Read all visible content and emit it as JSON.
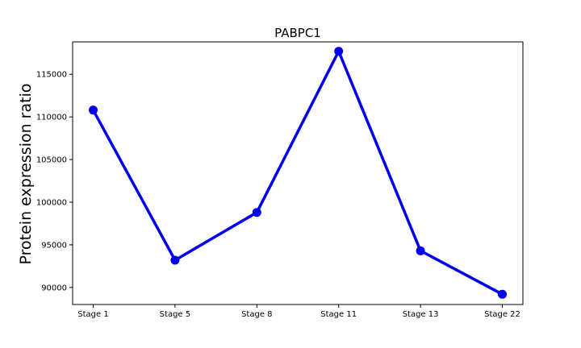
{
  "chart_data": {
    "type": "line",
    "title": "PABPC1",
    "xlabel": "",
    "ylabel": "Protein expression ratio",
    "categories": [
      "Stage 1",
      "Stage 5",
      "Stage 8",
      "Stage 11",
      "Stage 13",
      "Stage 22"
    ],
    "series": [
      {
        "values": [
          110800,
          93200,
          98800,
          117700,
          94300,
          89200
        ]
      }
    ],
    "ylim": [
      88000,
      118800
    ],
    "yticks": [
      90000,
      95000,
      100000,
      105000,
      110000,
      115000
    ],
    "ytick_labels": [
      "90000",
      "95000",
      "100000",
      "105000",
      "110000",
      "115000"
    ],
    "grid": false,
    "line_color": "#0000ee",
    "marker": "circle"
  }
}
